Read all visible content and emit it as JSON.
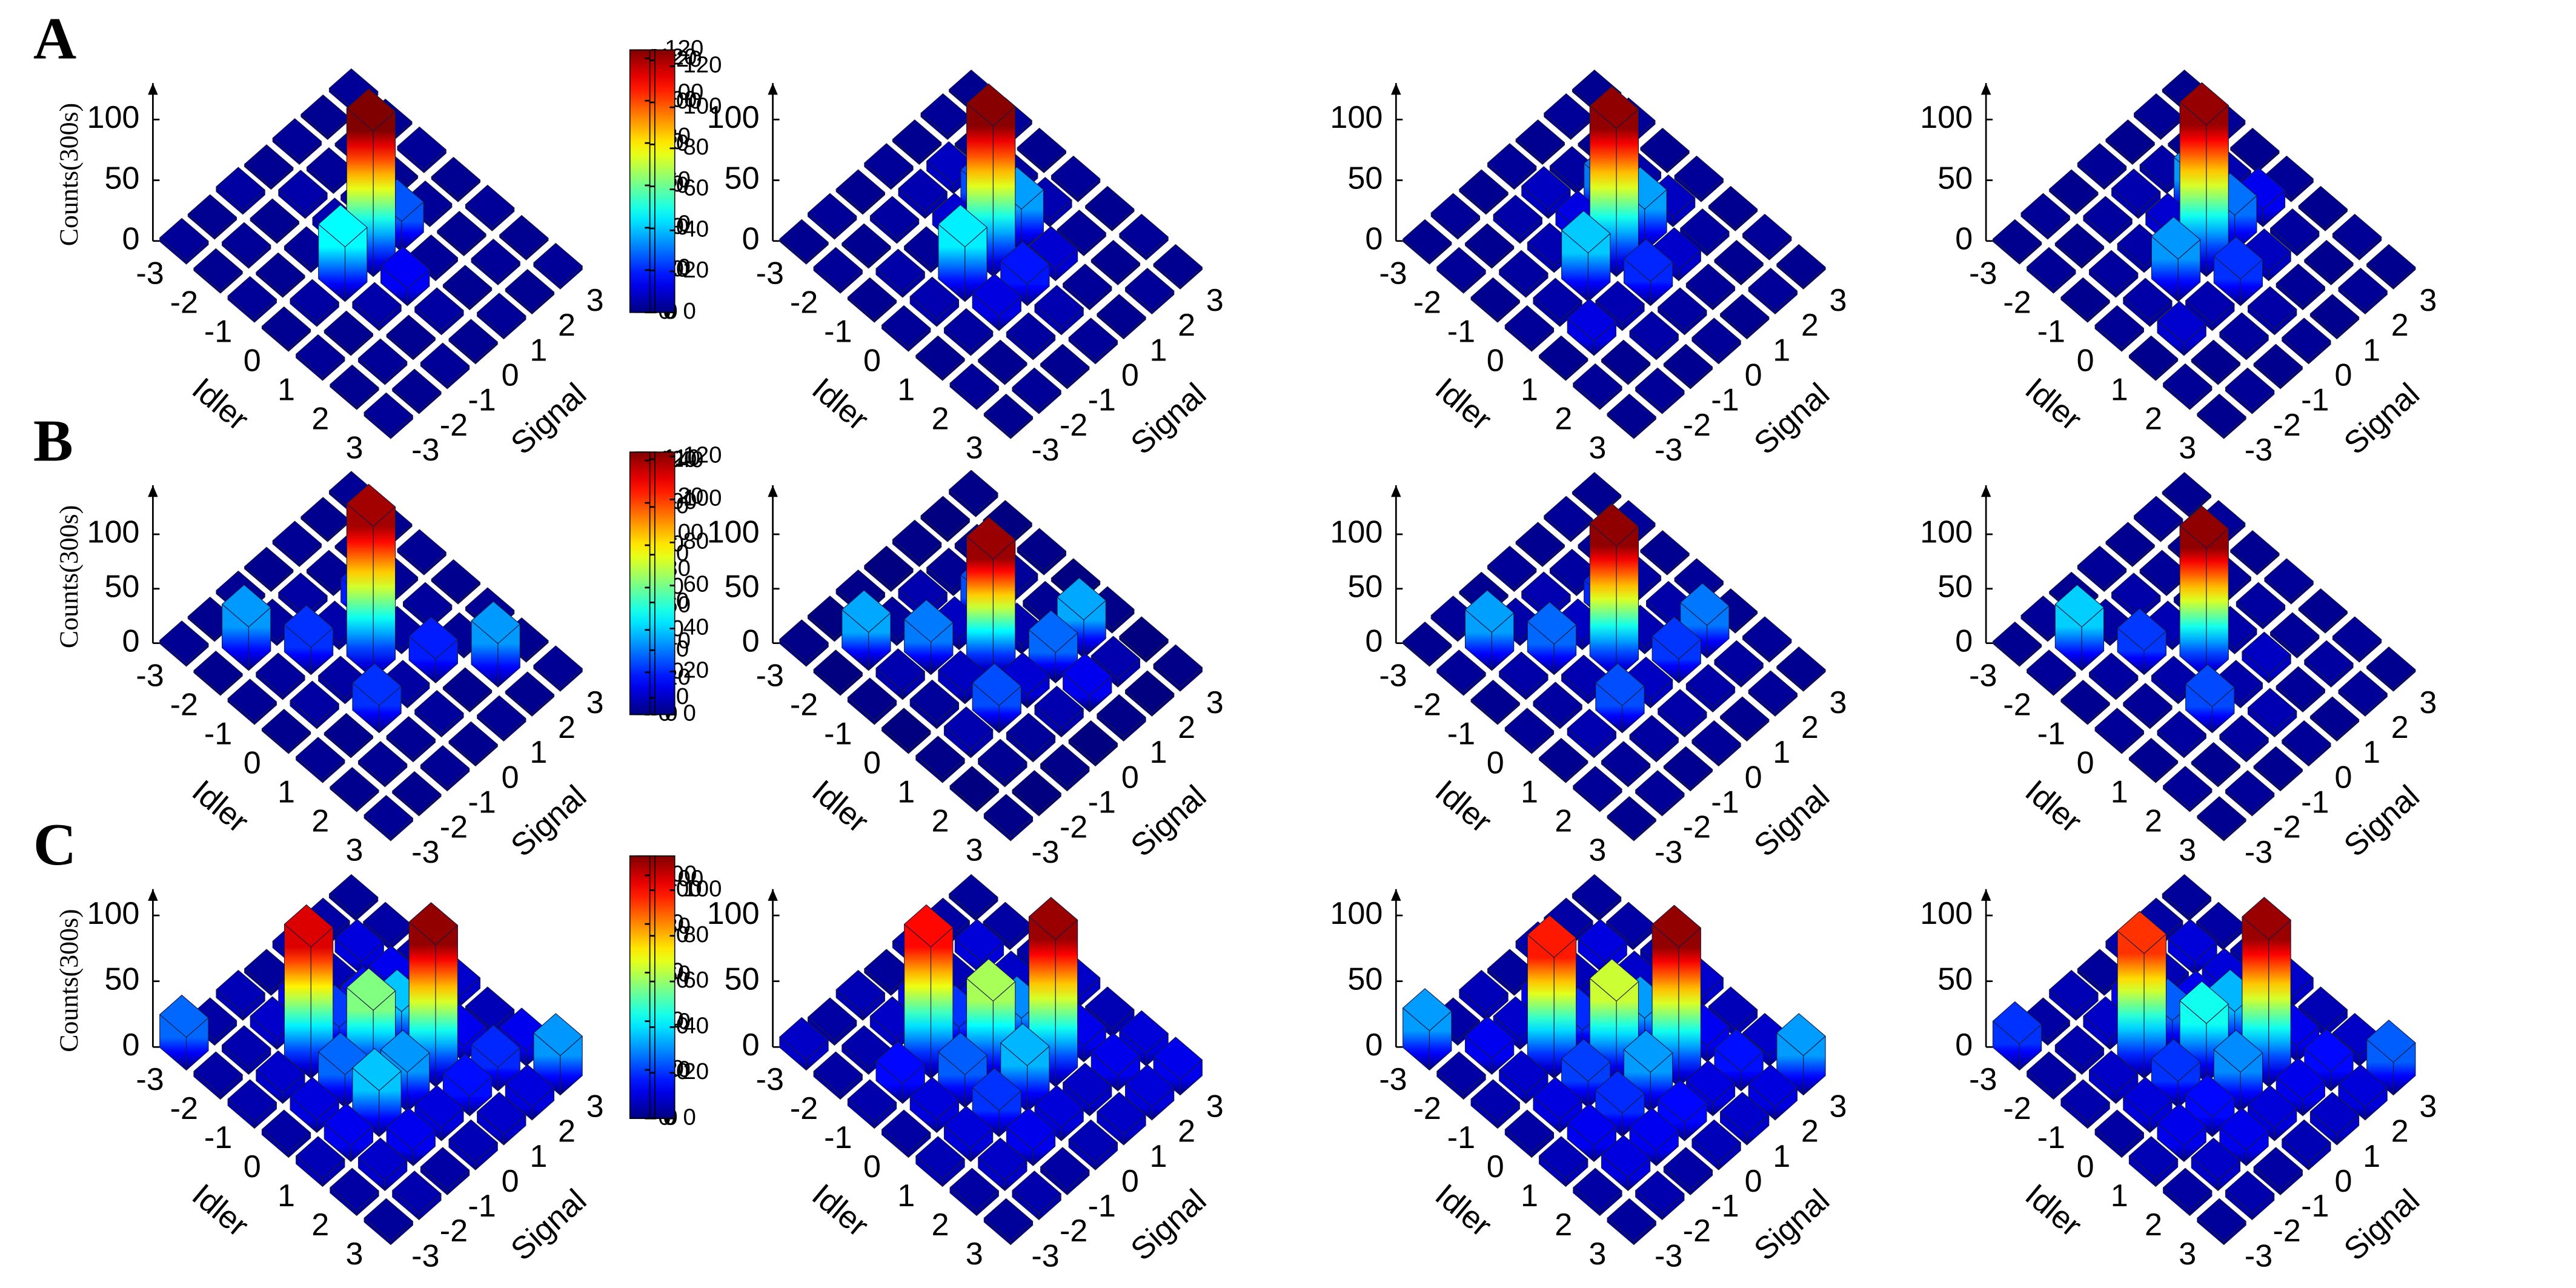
{
  "chart_data": [
    {
      "type": "bar3d",
      "label": "A",
      "zlabel": "Counts(300s)",
      "xlabel": "Idler",
      "ylabel": "Signal",
      "xticks": [
        -3,
        -2,
        -1,
        0,
        1,
        2,
        3
      ],
      "yticks": [
        -3,
        -2,
        -1,
        0,
        1,
        2,
        3
      ],
      "zlim": [
        0,
        130
      ],
      "zticks": [
        0,
        50,
        100
      ],
      "clim": [
        0,
        120
      ],
      "cticks": [
        0,
        20,
        40,
        60,
        80,
        100,
        120
      ],
      "colormap": "jet",
      "values": [
        [
          3,
          2,
          4,
          2,
          3,
          2,
          3
        ],
        [
          2,
          3,
          2,
          5,
          3,
          2,
          2
        ],
        [
          3,
          2,
          3,
          6,
          4,
          2,
          3
        ],
        [
          2,
          4,
          45,
          120,
          25,
          3,
          2
        ],
        [
          3,
          2,
          5,
          14,
          3,
          2,
          3
        ],
        [
          2,
          3,
          2,
          4,
          2,
          3,
          2
        ],
        [
          3,
          2,
          3,
          2,
          3,
          2,
          3
        ]
      ]
    },
    {
      "type": "bar3d",
      "xlabel": "Idler",
      "ylabel": "Signal",
      "xticks": [
        -3,
        -2,
        -1,
        0,
        1,
        2,
        3
      ],
      "yticks": [
        -3,
        -2,
        -1,
        0,
        1,
        2,
        3
      ],
      "zlim": [
        0,
        130
      ],
      "zticks": [
        0,
        50,
        100
      ],
      "clim": [
        0,
        125
      ],
      "cticks": [
        0,
        20,
        40,
        60,
        80,
        100,
        120
      ],
      "colormap": "jet",
      "values": [
        [
          2,
          3,
          2,
          3,
          2,
          3,
          2
        ],
        [
          3,
          2,
          4,
          6,
          8,
          2,
          3
        ],
        [
          2,
          5,
          3,
          10,
          25,
          4,
          2
        ],
        [
          3,
          6,
          45,
          124,
          35,
          6,
          3
        ],
        [
          2,
          4,
          12,
          18,
          10,
          3,
          2
        ],
        [
          3,
          2,
          4,
          6,
          3,
          2,
          3
        ],
        [
          2,
          3,
          2,
          3,
          2,
          3,
          2
        ]
      ]
    },
    {
      "type": "bar3d",
      "xlabel": "Idler",
      "ylabel": "Signal",
      "xticks": [
        -3,
        -2,
        -1,
        0,
        1,
        2,
        3
      ],
      "yticks": [
        -3,
        -2,
        -1,
        0,
        1,
        2,
        3
      ],
      "zlim": [
        0,
        130
      ],
      "zticks": [
        0,
        50,
        100
      ],
      "clim": [
        0,
        124
      ],
      "cticks": [
        0,
        20,
        40,
        60,
        80,
        100,
        120
      ],
      "colormap": "jet",
      "values": [
        [
          2,
          3,
          2,
          3,
          2,
          3,
          2
        ],
        [
          3,
          2,
          5,
          8,
          4,
          2,
          3
        ],
        [
          2,
          4,
          6,
          12,
          30,
          5,
          2
        ],
        [
          3,
          5,
          40,
          122,
          35,
          8,
          3
        ],
        [
          2,
          12,
          6,
          20,
          9,
          4,
          2
        ],
        [
          3,
          2,
          5,
          4,
          3,
          2,
          3
        ],
        [
          2,
          3,
          2,
          3,
          2,
          3,
          2
        ]
      ]
    },
    {
      "type": "bar3d",
      "xlabel": "Idler",
      "ylabel": "Signal",
      "xticks": [
        -3,
        -2,
        -1,
        0,
        1,
        2,
        3
      ],
      "yticks": [
        -3,
        -2,
        -1,
        0,
        1,
        2,
        3
      ],
      "zlim": [
        0,
        130
      ],
      "zticks": [
        0,
        50,
        100
      ],
      "clim": [
        0,
        128
      ],
      "cticks": [
        0,
        20,
        40,
        60,
        80,
        100,
        120
      ],
      "colormap": "jet",
      "values": [
        [
          2,
          3,
          2,
          3,
          2,
          3,
          2
        ],
        [
          3,
          2,
          4,
          6,
          5,
          2,
          3
        ],
        [
          2,
          4,
          5,
          10,
          35,
          6,
          2
        ],
        [
          3,
          5,
          35,
          125,
          30,
          14,
          3
        ],
        [
          2,
          10,
          6,
          22,
          8,
          4,
          2
        ],
        [
          3,
          2,
          4,
          5,
          3,
          2,
          3
        ],
        [
          2,
          3,
          2,
          3,
          2,
          3,
          2
        ]
      ]
    },
    {
      "type": "bar3d",
      "label": "B",
      "zlabel": "Counts(300s)",
      "xlabel": "Idler",
      "ylabel": "Signal",
      "xticks": [
        -3,
        -2,
        -1,
        0,
        1,
        2,
        3
      ],
      "yticks": [
        -3,
        -2,
        -1,
        0,
        1,
        2,
        3
      ],
      "zlim": [
        0,
        145
      ],
      "zticks": [
        0,
        50,
        100
      ],
      "clim": [
        0,
        145
      ],
      "cticks": [
        0,
        20,
        40,
        60,
        80,
        100,
        120,
        140
      ],
      "colormap": "jet",
      "values": [
        [
          3,
          2,
          3,
          2,
          3,
          2,
          3
        ],
        [
          2,
          40,
          4,
          5,
          3,
          2,
          2
        ],
        [
          3,
          4,
          25,
          6,
          22,
          3,
          3
        ],
        [
          2,
          5,
          5,
          140,
          5,
          4,
          2
        ],
        [
          3,
          2,
          25,
          5,
          22,
          3,
          3
        ],
        [
          2,
          3,
          3,
          4,
          2,
          40,
          2
        ],
        [
          3,
          2,
          3,
          2,
          3,
          2,
          3
        ]
      ]
    },
    {
      "type": "bar3d",
      "xlabel": "Idler",
      "ylabel": "Signal",
      "xticks": [
        -3,
        -2,
        -1,
        0,
        1,
        2,
        3
      ],
      "yticks": [
        -3,
        -2,
        -1,
        0,
        1,
        2,
        3
      ],
      "zlim": [
        0,
        145
      ],
      "zticks": [
        0,
        50,
        100
      ],
      "clim": [
        3,
        113
      ],
      "cticks": [
        10,
        30,
        50,
        70,
        90,
        110
      ],
      "colormap": "jet",
      "values": [
        [
          4,
          3,
          4,
          3,
          4,
          3,
          4
        ],
        [
          3,
          35,
          6,
          8,
          5,
          4,
          3
        ],
        [
          4,
          8,
          30,
          10,
          25,
          6,
          4
        ],
        [
          3,
          6,
          10,
          110,
          8,
          5,
          3
        ],
        [
          4,
          8,
          25,
          12,
          28,
          35,
          4
        ],
        [
          3,
          5,
          6,
          8,
          15,
          8,
          3
        ],
        [
          4,
          3,
          4,
          3,
          4,
          3,
          4
        ]
      ]
    },
    {
      "type": "bar3d",
      "xlabel": "Idler",
      "ylabel": "Signal",
      "xticks": [
        -3,
        -2,
        -1,
        0,
        1,
        2,
        3
      ],
      "yticks": [
        -3,
        -2,
        -1,
        0,
        1,
        2,
        3
      ],
      "zlim": [
        0,
        145
      ],
      "zticks": [
        0,
        50,
        100
      ],
      "clim": [
        0,
        124
      ],
      "cticks": [
        0,
        20,
        40,
        60,
        80,
        100,
        120
      ],
      "colormap": "jet",
      "values": [
        [
          2,
          3,
          2,
          3,
          2,
          3,
          2
        ],
        [
          3,
          35,
          5,
          6,
          4,
          3,
          3
        ],
        [
          2,
          5,
          28,
          8,
          20,
          4,
          2
        ],
        [
          3,
          4,
          6,
          122,
          6,
          5,
          3
        ],
        [
          2,
          6,
          25,
          8,
          22,
          30,
          2
        ],
        [
          3,
          3,
          4,
          5,
          5,
          4,
          3
        ],
        [
          2,
          3,
          2,
          3,
          2,
          3,
          2
        ]
      ]
    },
    {
      "type": "bar3d",
      "xlabel": "Idler",
      "ylabel": "Signal",
      "xticks": [
        -3,
        -2,
        -1,
        0,
        1,
        2,
        3
      ],
      "yticks": [
        -3,
        -2,
        -1,
        0,
        1,
        2,
        3
      ],
      "zlim": [
        0,
        145
      ],
      "zticks": [
        0,
        50,
        100
      ],
      "clim": [
        0,
        122
      ],
      "cticks": [
        0,
        20,
        40,
        60,
        80,
        100,
        120
      ],
      "colormap": "jet",
      "values": [
        [
          2,
          3,
          2,
          3,
          2,
          3,
          2
        ],
        [
          3,
          40,
          4,
          5,
          3,
          2,
          3
        ],
        [
          2,
          4,
          22,
          6,
          4,
          3,
          2
        ],
        [
          3,
          3,
          5,
          120,
          5,
          4,
          3
        ],
        [
          2,
          4,
          24,
          5,
          8,
          3,
          2
        ],
        [
          3,
          2,
          4,
          6,
          3,
          4,
          3
        ],
        [
          2,
          3,
          2,
          3,
          2,
          3,
          2
        ]
      ]
    },
    {
      "type": "bar3d",
      "label": "C",
      "zlabel": "Counts(300s)",
      "xlabel": "Idler",
      "ylabel": "Signal",
      "xticks": [
        -3,
        -2,
        -1,
        0,
        1,
        2,
        3
      ],
      "yticks": [
        -3,
        -2,
        -1,
        0,
        1,
        2,
        3
      ],
      "zlim": [
        0,
        120
      ],
      "zticks": [
        0,
        50,
        100
      ],
      "clim": [
        0,
        110
      ],
      "cticks": [
        0,
        20,
        40,
        60,
        80,
        100
      ],
      "colormap": "jet",
      "values": [
        [
          25,
          4,
          6,
          3,
          5,
          4,
          3
        ],
        [
          4,
          5,
          8,
          12,
          6,
          10,
          4
        ],
        [
          5,
          8,
          100,
          20,
          15,
          12,
          5
        ],
        [
          4,
          10,
          25,
          55,
          35,
          10,
          8
        ],
        [
          6,
          12,
          35,
          30,
          108,
          12,
          6
        ],
        [
          4,
          8,
          12,
          10,
          15,
          18,
          12
        ],
        [
          3,
          5,
          4,
          6,
          8,
          10,
          30
        ]
      ]
    },
    {
      "type": "bar3d",
      "xlabel": "Idler",
      "ylabel": "Signal",
      "xticks": [
        -3,
        -2,
        -1,
        0,
        1,
        2,
        3
      ],
      "yticks": [
        -3,
        -2,
        -1,
        0,
        1,
        2,
        3
      ],
      "zlim": [
        0,
        120
      ],
      "zticks": [
        0,
        50,
        100
      ],
      "clim": [
        0,
        115
      ],
      "cticks": [
        0,
        20,
        40,
        60,
        80,
        100
      ],
      "colormap": "jet",
      "values": [
        [
          8,
          4,
          6,
          3,
          5,
          4,
          3
        ],
        [
          4,
          5,
          8,
          12,
          6,
          10,
          4
        ],
        [
          5,
          15,
          100,
          20,
          12,
          8,
          5
        ],
        [
          4,
          10,
          25,
          62,
          30,
          10,
          8
        ],
        [
          6,
          10,
          20,
          35,
          112,
          12,
          6
        ],
        [
          4,
          8,
          12,
          10,
          8,
          12,
          10
        ],
        [
          3,
          5,
          4,
          6,
          8,
          10,
          12
        ]
      ]
    },
    {
      "type": "bar3d",
      "xlabel": "Idler",
      "ylabel": "Signal",
      "xticks": [
        -3,
        -2,
        -1,
        0,
        1,
        2,
        3
      ],
      "yticks": [
        -3,
        -2,
        -1,
        0,
        1,
        2,
        3
      ],
      "zlim": [
        0,
        120
      ],
      "zticks": [
        0,
        50,
        100
      ],
      "clim": [
        0,
        108
      ],
      "cticks": [
        0,
        20,
        40,
        60,
        80,
        100
      ],
      "colormap": "jet",
      "values": [
        [
          30,
          4,
          6,
          3,
          5,
          4,
          3
        ],
        [
          4,
          12,
          8,
          12,
          6,
          10,
          4
        ],
        [
          5,
          8,
          92,
          18,
          10,
          8,
          5
        ],
        [
          4,
          10,
          20,
          62,
          30,
          10,
          8
        ],
        [
          6,
          12,
          18,
          30,
          106,
          12,
          6
        ],
        [
          4,
          10,
          12,
          14,
          10,
          15,
          8
        ],
        [
          3,
          5,
          4,
          6,
          8,
          10,
          30
        ]
      ]
    },
    {
      "type": "bar3d",
      "xlabel": "Idler",
      "ylabel": "Signal",
      "xticks": [
        -3,
        -2,
        -1,
        0,
        1,
        2,
        3
      ],
      "yticks": [
        -3,
        -2,
        -1,
        0,
        1,
        2,
        3
      ],
      "zlim": [
        0,
        120
      ],
      "zticks": [
        0,
        50,
        100
      ],
      "clim": [
        0,
        115
      ],
      "cticks": [
        0,
        20,
        40,
        60,
        80,
        100
      ],
      "colormap": "jet",
      "values": [
        [
          20,
          4,
          6,
          3,
          5,
          4,
          3
        ],
        [
          4,
          5,
          8,
          12,
          6,
          10,
          4
        ],
        [
          5,
          8,
          95,
          25,
          12,
          10,
          5
        ],
        [
          4,
          10,
          20,
          45,
          35,
          10,
          8
        ],
        [
          6,
          12,
          15,
          30,
          112,
          12,
          6
        ],
        [
          4,
          8,
          12,
          10,
          12,
          15,
          8
        ],
        [
          3,
          5,
          4,
          6,
          8,
          10,
          25
        ]
      ]
    }
  ]
}
